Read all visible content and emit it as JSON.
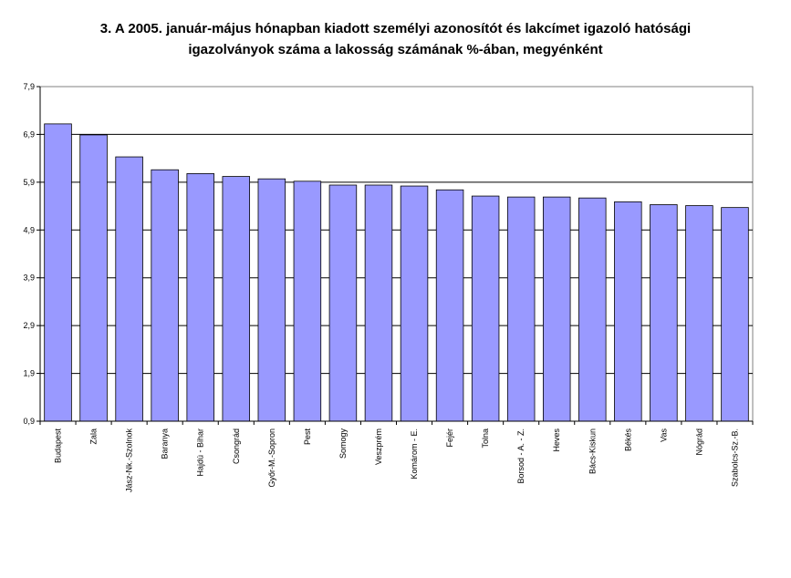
{
  "chart_data": {
    "type": "bar",
    "title_lines": [
      "3. A 2005.  január-május hónapban kiadott személyi azonosítót és lakcímet igazoló hatósági",
      "igazolványok száma a lakosság  számának %-ában, megyénként"
    ],
    "xlabel": "",
    "ylabel": "",
    "ylim": [
      0.9,
      7.9
    ],
    "yticks": [
      "0,9",
      "1,9",
      "2,9",
      "3,9",
      "4,9",
      "5,9",
      "6,9",
      "7,9"
    ],
    "ytick_values": [
      0.9,
      1.9,
      2.9,
      3.9,
      4.9,
      5.9,
      6.9,
      7.9
    ],
    "grid": true,
    "legend": "none",
    "categories": [
      "Budapest",
      "Zala",
      "Jász-Nk.-Szolnok",
      "Baranya",
      "Hajdú - Bihar",
      "Csongrád",
      "Győr-M.-Sopron",
      "Pest",
      "Somogy",
      "Veszprém",
      "Komárom - E.",
      "Fejér",
      "Tolna",
      "Borsod - A. - Z.",
      "Heves",
      "Bács-Kiskun",
      "Békés",
      "Vas",
      "Nógrád",
      "Szabolcs-Sz.-B."
    ],
    "values": [
      7.12,
      6.89,
      6.43,
      6.16,
      6.08,
      6.02,
      5.97,
      5.92,
      5.84,
      5.84,
      5.82,
      5.74,
      5.61,
      5.59,
      5.59,
      5.57,
      5.49,
      5.43,
      5.41,
      5.37
    ],
    "bar_color": "#9999ff",
    "bar_stroke": "#000000"
  }
}
